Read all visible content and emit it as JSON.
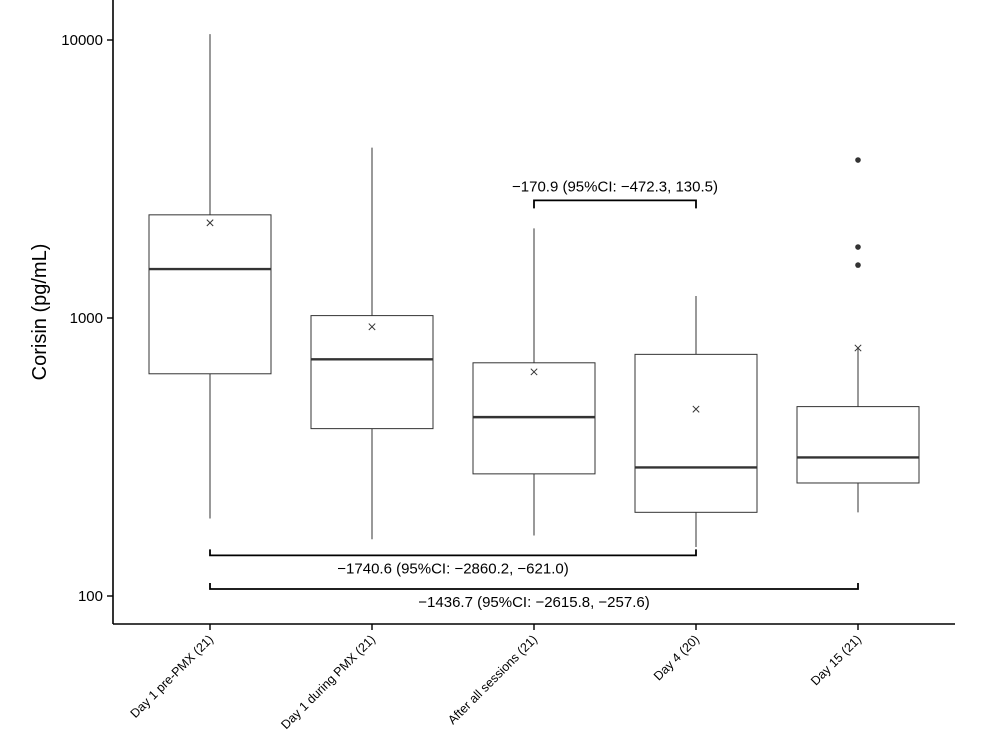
{
  "chart_data": {
    "type": "box",
    "ylabel": "Corisin (pg/mL)",
    "yscale": "log",
    "ylim": [
      80,
      14000
    ],
    "yticks": [
      {
        "value": 100,
        "label": "100"
      },
      {
        "value": 1000,
        "label": "1000"
      },
      {
        "value": 10000,
        "label": "10000"
      }
    ],
    "grid": false,
    "categories": [
      "Day 1 pre-PMX (21)",
      "Day 1 during PMX (21)",
      "After all sessions (21)",
      "Day 4 (20)",
      "Day 15 (21)"
    ],
    "boxes": [
      {
        "whisker_low": 190,
        "q1": 630,
        "median": 1500,
        "q3": 2350,
        "whisker_high": 10500,
        "mean": 2200,
        "outliers": []
      },
      {
        "whisker_low": 160,
        "q1": 400,
        "median": 710,
        "q3": 1020,
        "whisker_high": 4100,
        "mean": 930,
        "outliers": []
      },
      {
        "whisker_low": 165,
        "q1": 275,
        "median": 440,
        "q3": 690,
        "whisker_high": 2100,
        "mean": 640,
        "outliers": []
      },
      {
        "whisker_low": 150,
        "q1": 200,
        "median": 290,
        "q3": 740,
        "whisker_high": 1200,
        "mean": 470,
        "outliers": []
      },
      {
        "whisker_low": 200,
        "q1": 255,
        "median": 315,
        "q3": 480,
        "whisker_high": 780,
        "mean": 780,
        "outliers": [
          3700,
          1800,
          1550
        ]
      }
    ],
    "annotations": [
      {
        "from": 2,
        "to": 3,
        "position": "above",
        "bracket_y": 2650,
        "text": "−170.9 (95%CI: −472.3, 130.5)"
      },
      {
        "from": 0,
        "to": 3,
        "position": "below",
        "bracket_y": 140,
        "text": "−1740.6 (95%CI: −2860.2, −621.0)"
      },
      {
        "from": 0,
        "to": 4,
        "position": "below",
        "bracket_y": 106,
        "text": "−1436.7 (95%CI: −2615.8, −257.6)"
      }
    ]
  }
}
